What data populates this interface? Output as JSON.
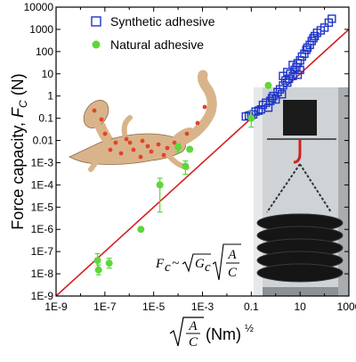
{
  "chart_data": {
    "type": "scatter",
    "title": "",
    "ylabel": "Force capacity, F_C (N)",
    "xlabel": "√(A/C) (Nm)^½",
    "x_scale": "log",
    "y_scale": "log",
    "xlim": [
      1e-09,
      1000
    ],
    "ylim": [
      1e-09,
      10000
    ],
    "x_ticks": [
      "1E-9",
      "1E-7",
      "1E-5",
      "1E-3",
      "0.1",
      "10",
      "1000"
    ],
    "y_ticks": [
      "10000",
      "1000",
      "100",
      "10",
      "1",
      "0.1",
      "0.01",
      "1E-3",
      "1E-4",
      "1E-5",
      "1E-6",
      "1E-7",
      "1E-8",
      "1E-9"
    ],
    "legend": [
      "Synthetic adhesive",
      "Natural adhesive"
    ],
    "legend_position": "top-left",
    "fit_line": {
      "color": "#d62020",
      "x": [
        1e-09,
        1000
      ],
      "y": [
        1e-09,
        1000
      ]
    },
    "equation": "F_c ~ √G_c √(A/C)",
    "series": [
      {
        "name": "Synthetic adhesive",
        "marker": "open-square",
        "color": "#1f35c8",
        "points": [
          [
            0.06,
            0.12
          ],
          [
            0.08,
            0.13
          ],
          [
            0.1,
            0.14
          ],
          [
            0.12,
            0.15
          ],
          [
            0.15,
            0.2
          ],
          [
            0.2,
            0.22
          ],
          [
            0.25,
            0.25
          ],
          [
            0.3,
            0.4
          ],
          [
            0.4,
            0.5
          ],
          [
            0.5,
            0.3
          ],
          [
            0.6,
            0.6
          ],
          [
            0.7,
            0.8
          ],
          [
            0.8,
            1.0
          ],
          [
            1.0,
            0.7
          ],
          [
            1.2,
            1.5
          ],
          [
            1.5,
            2.0
          ],
          [
            1.8,
            1.2
          ],
          [
            2.0,
            3.0
          ],
          [
            2.5,
            5.0
          ],
          [
            3.0,
            4.0
          ],
          [
            3.5,
            6.0
          ],
          [
            4.0,
            10
          ],
          [
            5.0,
            8.0
          ],
          [
            6.0,
            15
          ],
          [
            7.0,
            20
          ],
          [
            8.0,
            30
          ],
          [
            10,
            40
          ],
          [
            12,
            60
          ],
          [
            15,
            80
          ],
          [
            18,
            120
          ],
          [
            20,
            150
          ],
          [
            25,
            200
          ],
          [
            30,
            300
          ],
          [
            35,
            400
          ],
          [
            40,
            500
          ],
          [
            50,
            700
          ],
          [
            70,
            900
          ],
          [
            100,
            1200
          ],
          [
            150,
            2000
          ],
          [
            200,
            3000
          ],
          [
            8.0,
            9.0
          ],
          [
            10,
            15
          ],
          [
            5.0,
            25
          ],
          [
            3.0,
            12
          ],
          [
            2.0,
            8.0
          ]
        ]
      },
      {
        "name": "Natural adhesive",
        "marker": "filled-circle",
        "color": "#5fd63a",
        "points": [
          {
            "x": 5e-08,
            "y": 4e-08,
            "err": [
              1.5e-08,
              8e-08
            ]
          },
          {
            "x": 5.5e-08,
            "y": 1.5e-08,
            "err": [
              9e-09,
              2.5e-08
            ]
          },
          {
            "x": 1.5e-07,
            "y": 3e-08,
            "err": [
              1.8e-08,
              5e-08
            ]
          },
          {
            "x": 3e-06,
            "y": 1e-06,
            "err": null
          },
          {
            "x": 1.8e-05,
            "y": 0.0001,
            "err": [
              6e-06,
              0.0002
            ]
          },
          {
            "x": 0.0001,
            "y": 0.005,
            "err": [
              0.003,
              0.007
            ]
          },
          {
            "x": 0.0002,
            "y": 0.0007,
            "err": [
              0.0003,
              0.0012
            ]
          },
          {
            "x": 0.0003,
            "y": 0.004,
            "err": null
          },
          {
            "x": 0.1,
            "y": 0.1,
            "err": [
              0.04,
              0.2
            ]
          },
          {
            "x": 0.5,
            "y": 3.0,
            "err": null
          }
        ]
      }
    ]
  }
}
